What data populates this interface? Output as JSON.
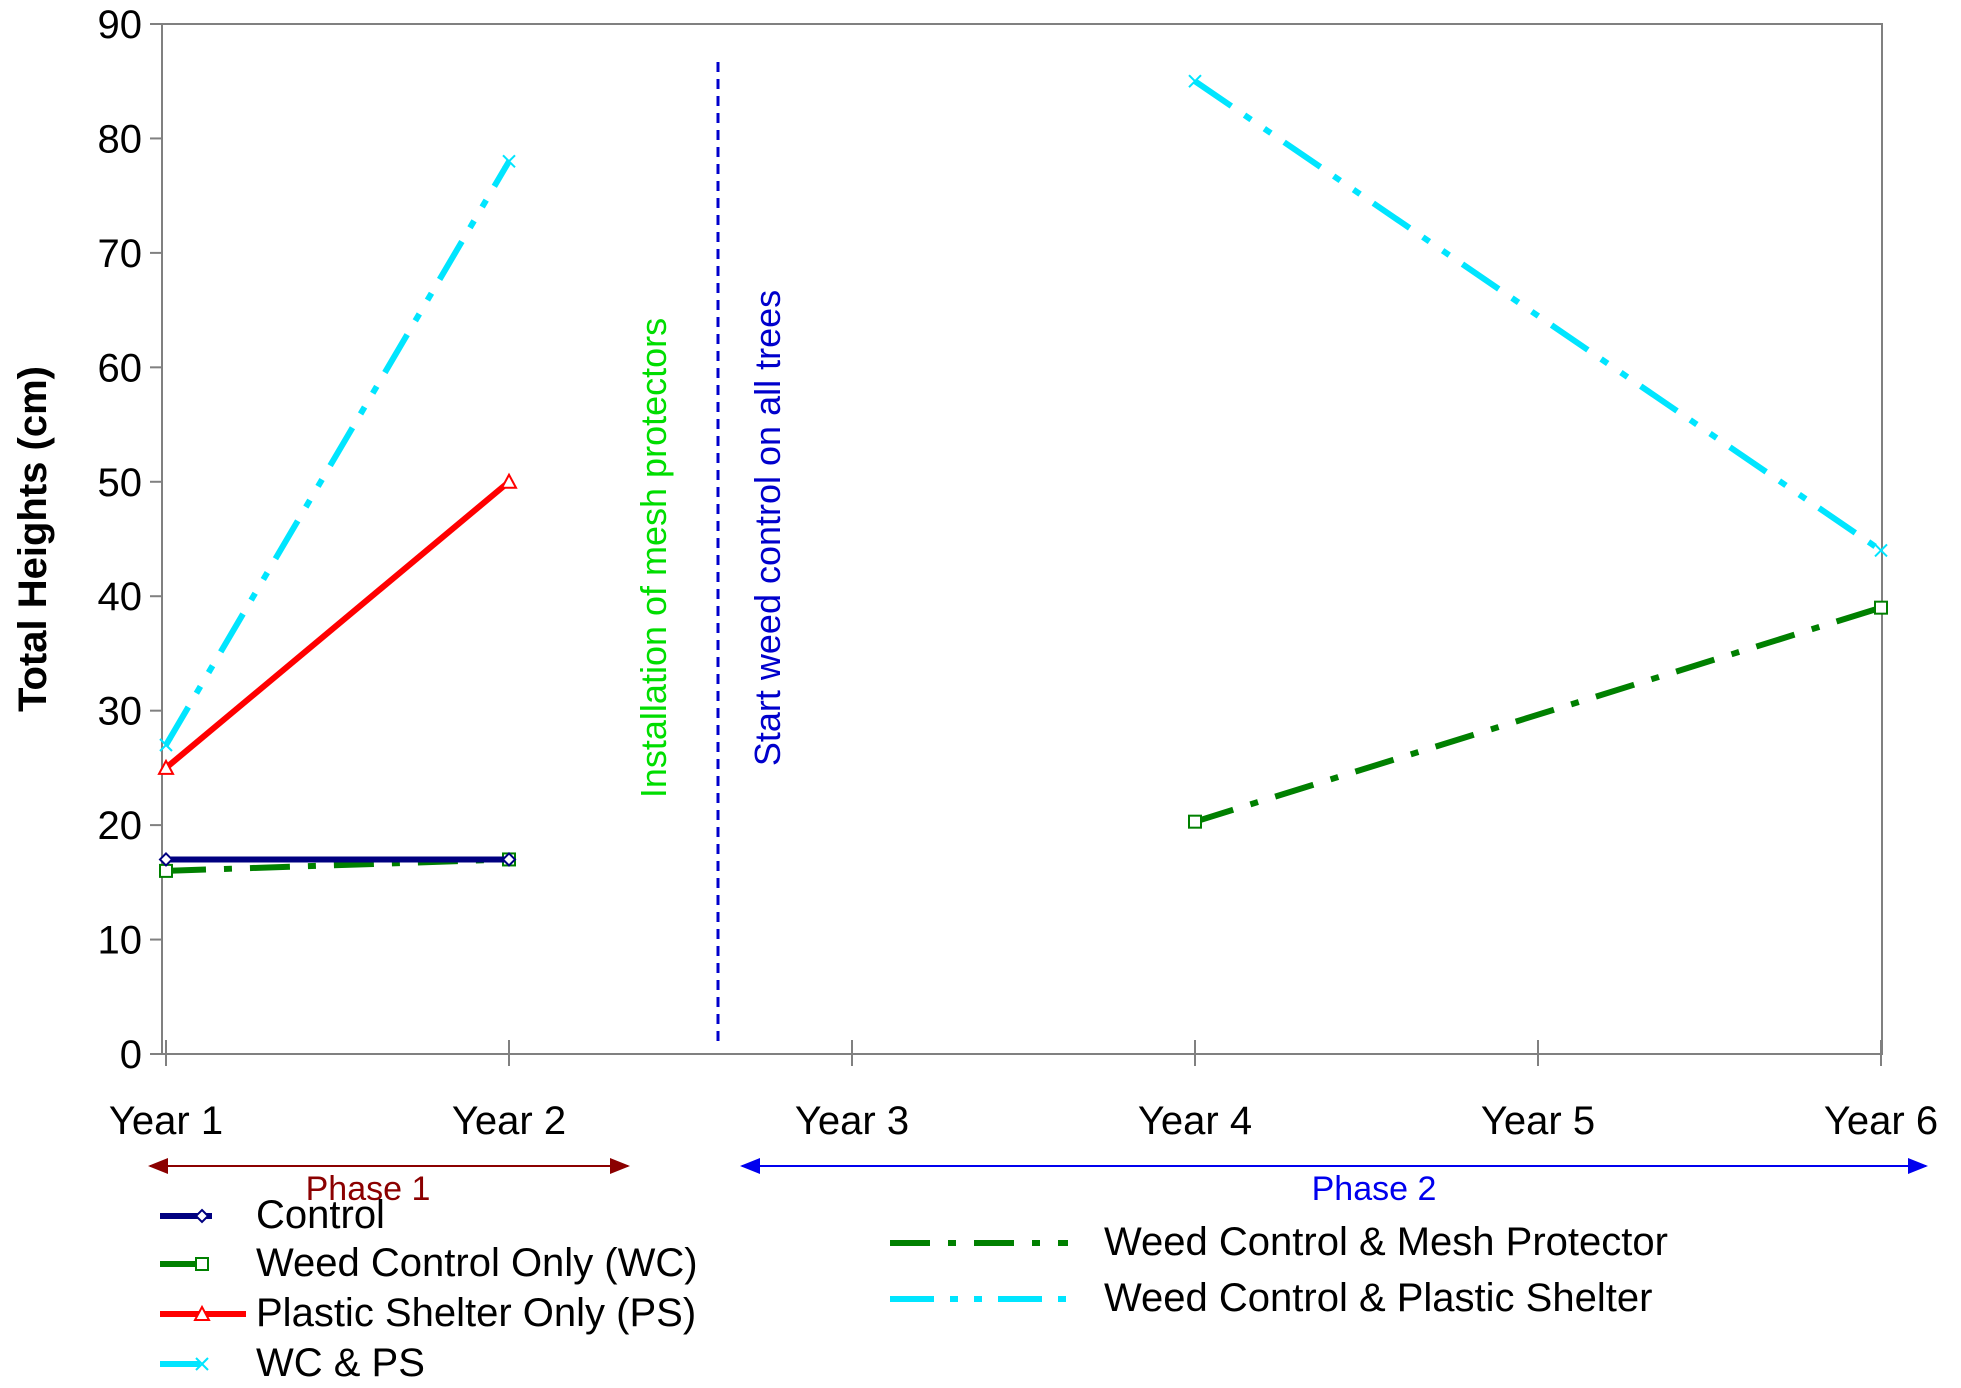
{
  "chart_data": {
    "type": "line",
    "title": "",
    "xlabel": "",
    "ylabel": "Total Heights (cm)",
    "categories": [
      "Year 1",
      "Year 2",
      "Year 3",
      "Year 4",
      "Year 5",
      "Year 6"
    ],
    "ylim": [
      0,
      90
    ],
    "yticks": [
      0,
      10,
      20,
      30,
      40,
      50,
      60,
      70,
      80,
      90
    ],
    "grid": false,
    "series": [
      {
        "name": "Control",
        "color": "#000080",
        "marker": "diamond",
        "dash": "solid",
        "values": [
          17,
          17,
          null,
          null,
          null,
          null
        ]
      },
      {
        "name": "Weed Control Only (WC)",
        "color": "#008000",
        "marker": "square",
        "dash": "dashdot",
        "values": [
          16,
          17,
          null,
          null,
          null,
          null
        ]
      },
      {
        "name": "Plastic Shelter Only (PS)",
        "color": "#ff0000",
        "marker": "triangle",
        "dash": "solid",
        "values": [
          25,
          50,
          null,
          null,
          null,
          null
        ]
      },
      {
        "name": "WC & PS",
        "color": "#00e5ff",
        "marker": "x",
        "dash": "dashdotdot",
        "values": [
          27,
          78,
          null,
          null,
          null,
          null
        ]
      },
      {
        "name": "Weed Control & Mesh Protector",
        "color": "#008000",
        "marker": "square",
        "dash": "dashdot",
        "values": [
          null,
          null,
          null,
          20.3,
          null,
          39
        ]
      },
      {
        "name": "Weed Control & Plastic Shelter",
        "color": "#00e5ff",
        "marker": "x",
        "dash": "dashdotdot",
        "values": [
          null,
          null,
          null,
          85,
          null,
          44
        ]
      }
    ],
    "annotations": {
      "mesh_text": "Installation of mesh protectors",
      "mesh_color": "#00dd00",
      "weed_text": "Start weed control on all trees",
      "weed_color": "#0000cc",
      "divider_color": "#0000cc"
    },
    "phases": [
      {
        "label": "Phase 1",
        "color": "#8b0000"
      },
      {
        "label": "Phase 2",
        "color": "#0000ee"
      }
    ],
    "legend_placement": "bottom"
  }
}
